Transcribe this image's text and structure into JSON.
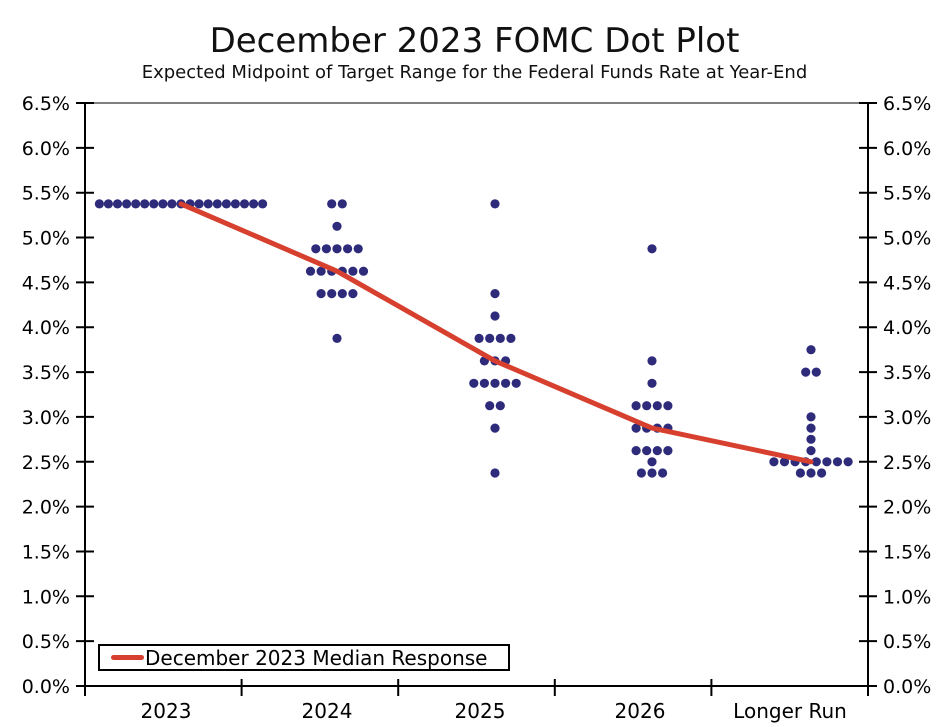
{
  "chart_data": {
    "type": "scatter",
    "title": "December 2023 FOMC Dot Plot",
    "subtitle": "Expected Midpoint of Target Range for the Federal Funds Rate at Year-End",
    "categories": [
      "2023",
      "2024",
      "2025",
      "2026",
      "Longer Run"
    ],
    "y_axis": {
      "min": 0,
      "max": 6.5,
      "step": 0.5,
      "tick_labels": [
        "0.0%",
        "0.5%",
        "1.0%",
        "1.5%",
        "2.0%",
        "2.5%",
        "3.0%",
        "3.5%",
        "4.0%",
        "4.5%",
        "5.0%",
        "5.5%",
        "6.0%",
        "6.5%"
      ],
      "label_sides": "both"
    },
    "grid": false,
    "legend_position": "bottom-left",
    "dots": {
      "2023": [
        {
          "rate": 5.375,
          "count": 19
        }
      ],
      "2024": [
        {
          "rate": 5.375,
          "count": 2
        },
        {
          "rate": 5.125,
          "count": 1
        },
        {
          "rate": 4.875,
          "count": 5
        },
        {
          "rate": 4.625,
          "count": 6
        },
        {
          "rate": 4.375,
          "count": 4
        },
        {
          "rate": 3.875,
          "count": 1
        }
      ],
      "2025": [
        {
          "rate": 5.375,
          "count": 1
        },
        {
          "rate": 4.375,
          "count": 1
        },
        {
          "rate": 4.125,
          "count": 1
        },
        {
          "rate": 3.875,
          "count": 4
        },
        {
          "rate": 3.625,
          "count": 3
        },
        {
          "rate": 3.375,
          "count": 5
        },
        {
          "rate": 3.125,
          "count": 2
        },
        {
          "rate": 2.875,
          "count": 1
        },
        {
          "rate": 2.375,
          "count": 1
        }
      ],
      "2026": [
        {
          "rate": 4.875,
          "count": 1
        },
        {
          "rate": 3.625,
          "count": 1
        },
        {
          "rate": 3.375,
          "count": 1
        },
        {
          "rate": 3.125,
          "count": 4
        },
        {
          "rate": 2.875,
          "count": 4
        },
        {
          "rate": 2.625,
          "count": 4
        },
        {
          "rate": 2.5,
          "count": 1
        },
        {
          "rate": 2.375,
          "count": 3
        }
      ],
      "Longer Run": [
        {
          "rate": 3.75,
          "count": 1
        },
        {
          "rate": 3.5,
          "count": 2
        },
        {
          "rate": 3.0,
          "count": 1
        },
        {
          "rate": 2.875,
          "count": 1
        },
        {
          "rate": 2.75,
          "count": 1
        },
        {
          "rate": 2.625,
          "count": 1
        },
        {
          "rate": 2.5,
          "count": 8
        },
        {
          "rate": 2.375,
          "count": 3
        }
      ]
    },
    "series": [
      {
        "name": "December 2023 Median Response",
        "values": [
          5.375,
          4.625,
          3.625,
          2.875,
          2.5
        ]
      }
    ],
    "colors": {
      "dot": "#2e2b7b",
      "median_line": "#d7402e",
      "axis": "#000000",
      "top_spine": "#555555"
    }
  }
}
